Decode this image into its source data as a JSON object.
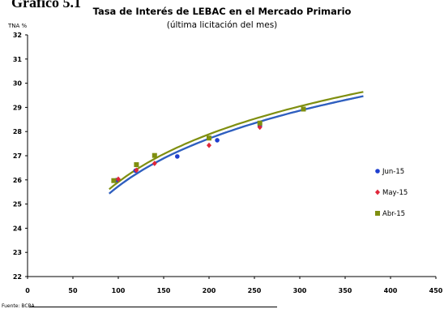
{
  "heading": "Gráfico 5.1",
  "source_note": "Fuente: BCRA",
  "chart_data": {
    "type": "scatter",
    "title": "Tasa de Interés de LEBAC en el Mercado Primario",
    "subtitle": "(última licitación del mes)",
    "ylabel": "TNA %",
    "xlabel": "",
    "xlim": [
      0,
      450
    ],
    "ylim": [
      22,
      32
    ],
    "xticks": [
      0,
      50,
      100,
      150,
      200,
      250,
      300,
      350,
      400,
      450
    ],
    "yticks": [
      22,
      23,
      24,
      25,
      26,
      27,
      28,
      29,
      30,
      31,
      32
    ],
    "grid": false,
    "legend_position": "right",
    "series": [
      {
        "name": "Jun-15",
        "color": "#1f3fcf",
        "marker": "circle",
        "points": [
          [
            98,
            25.99
          ],
          [
            119,
            26.38
          ],
          [
            165,
            26.97
          ],
          [
            209,
            27.64
          ],
          [
            256,
            28.22
          ]
        ],
        "trend": {
          "color": "#2f5fbf",
          "a": 26.3,
          "b": 2.85,
          "x0": 122,
          "x_range": [
            90,
            370
          ]
        }
      },
      {
        "name": "May-15",
        "color": "#e0263a",
        "marker": "diamond",
        "points": [
          [
            100,
            26.03
          ],
          [
            120,
            26.4
          ],
          [
            140,
            26.68
          ],
          [
            200,
            27.43
          ],
          [
            256,
            28.18
          ]
        ],
        "trend": {
          "color": "#2f5fbf",
          "a": 26.3,
          "b": 2.85,
          "x0": 122,
          "x_range": [
            90,
            370
          ]
        }
      },
      {
        "name": "Abr-15",
        "color": "#7f8f10",
        "marker": "square",
        "points": [
          [
            95,
            25.97
          ],
          [
            120,
            26.63
          ],
          [
            140,
            27.01
          ],
          [
            200,
            27.73
          ],
          [
            256,
            28.35
          ],
          [
            304,
            28.93
          ]
        ],
        "trend": {
          "color": "#7f8f10",
          "a": 26.48,
          "b": 2.85,
          "x0": 122,
          "x_range": [
            90,
            370
          ]
        }
      }
    ]
  }
}
